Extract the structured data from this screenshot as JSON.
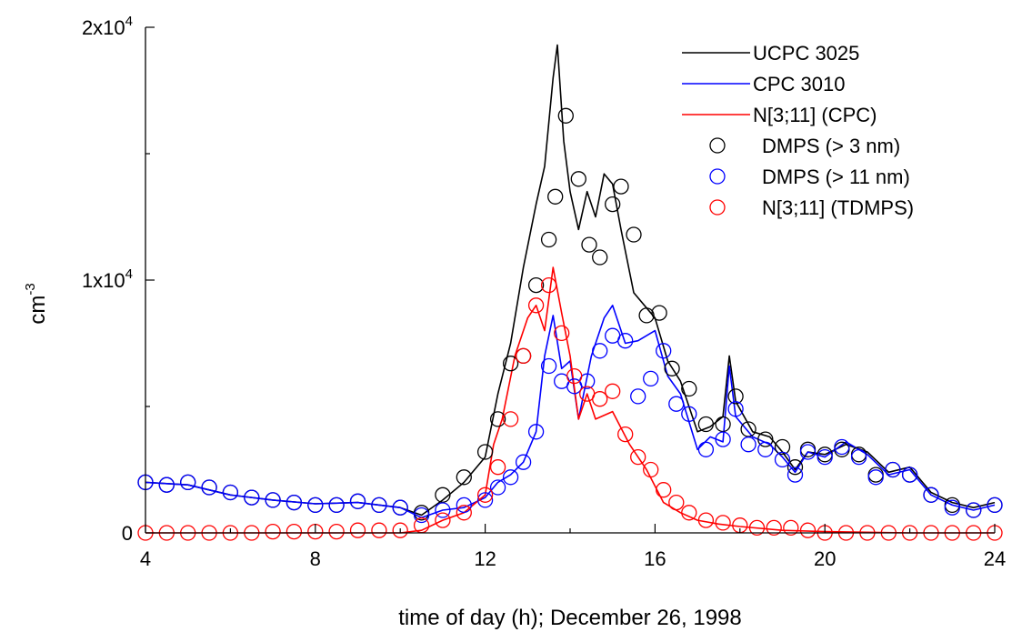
{
  "chart_data": {
    "type": "line",
    "title": "",
    "xlabel": "time of day (h); December 26, 1998",
    "ylabel": {
      "base": "cm",
      "exponent": "-3"
    },
    "xlim": [
      4,
      24
    ],
    "ylim": [
      0,
      20000
    ],
    "x_ticks": [
      4,
      8,
      12,
      16,
      20,
      24
    ],
    "x_tick_labels": [
      "4",
      "8",
      "12",
      "16",
      "20",
      "24"
    ],
    "y_ticks": [
      0,
      10000,
      20000
    ],
    "y_tick_labels": [
      {
        "text": "0",
        "base": "",
        "exponent": ""
      },
      {
        "text": "",
        "base": "1x10",
        "exponent": "4"
      },
      {
        "text": "",
        "base": "2x10",
        "exponent": "4"
      }
    ],
    "grid": false,
    "legend_position": "top-right",
    "series": [
      {
        "name": "UCPC 3025",
        "kind": "line",
        "color": "#000000",
        "x": [
          4,
          5,
          6,
          7,
          8,
          9,
          10,
          10.5,
          11,
          11.5,
          12,
          12.3,
          12.6,
          12.9,
          13.2,
          13.4,
          13.6,
          13.7,
          13.85,
          14,
          14.2,
          14.4,
          14.6,
          14.8,
          15,
          15.2,
          15.5,
          16,
          16.3,
          16.6,
          17,
          17.3,
          17.6,
          17.75,
          17.9,
          18.3,
          18.7,
          19,
          19.3,
          19.6,
          20,
          20.5,
          21,
          21.5,
          22,
          22.5,
          23,
          23.5,
          24
        ],
        "y": [
          2000,
          1900,
          1500,
          1300,
          1150,
          1200,
          1000,
          700,
          1300,
          2000,
          3000,
          5500,
          7500,
          10500,
          13000,
          14500,
          18000,
          19300,
          15500,
          13500,
          12000,
          13500,
          12500,
          14200,
          13800,
          12000,
          9500,
          8500,
          6800,
          6000,
          4000,
          4200,
          4600,
          7000,
          5200,
          4000,
          3800,
          3200,
          2500,
          3200,
          3100,
          3500,
          3200,
          2400,
          2600,
          1600,
          1200,
          1000,
          1200
        ]
      },
      {
        "name": "CPC 3010",
        "kind": "line",
        "color": "#0000ff",
        "x": [
          4,
          5,
          6,
          7,
          8,
          9,
          10,
          10.5,
          11,
          11.5,
          12,
          12.3,
          12.6,
          12.9,
          13.2,
          13.4,
          13.6,
          13.8,
          14,
          14.2,
          14.5,
          14.8,
          15,
          15.3,
          15.6,
          16,
          16.3,
          16.6,
          17,
          17.3,
          17.6,
          17.75,
          17.9,
          18.3,
          18.7,
          19,
          19.3,
          19.6,
          20,
          20.5,
          21,
          21.5,
          22,
          22.5,
          23,
          23.5,
          24
        ],
        "y": [
          2000,
          1900,
          1500,
          1300,
          1150,
          1200,
          1000,
          600,
          900,
          1000,
          1400,
          2000,
          2300,
          2800,
          4000,
          7000,
          8600,
          6500,
          6800,
          4500,
          7000,
          8500,
          9000,
          7500,
          7600,
          8000,
          6200,
          5500,
          3300,
          3800,
          3600,
          6600,
          4600,
          3800,
          3500,
          3000,
          2400,
          3200,
          3000,
          3600,
          3100,
          2300,
          2500,
          1500,
          1100,
          900,
          1100
        ]
      },
      {
        "name": "N[3;11] (CPC)",
        "kind": "line",
        "color": "#ff0000",
        "x": [
          4,
          6,
          8,
          10,
          10.5,
          11,
          11.5,
          12,
          12.2,
          12.4,
          12.7,
          13,
          13.2,
          13.4,
          13.6,
          13.8,
          14,
          14.2,
          14.4,
          14.6,
          15,
          15.4,
          15.8,
          16.2,
          16.6,
          17,
          17.5,
          18,
          19,
          20,
          22,
          24
        ],
        "y": [
          0,
          0,
          0,
          0,
          100,
          500,
          800,
          1500,
          3500,
          4500,
          7000,
          8500,
          9000,
          8000,
          10500,
          8700,
          7000,
          4500,
          5500,
          4500,
          4800,
          3500,
          2500,
          1200,
          800,
          500,
          350,
          250,
          100,
          50,
          0,
          0
        ]
      },
      {
        "name": "DMPS (> 3 nm)",
        "kind": "markers",
        "color": "#000000",
        "x": [
          4,
          4.5,
          5,
          5.5,
          6,
          6.5,
          7,
          7.5,
          8,
          8.5,
          9,
          9.5,
          10,
          10.5,
          11,
          11.5,
          12,
          12.3,
          12.6,
          12.9,
          13.2,
          13.5,
          13.65,
          13.9,
          14.2,
          14.45,
          14.7,
          15,
          15.2,
          15.5,
          15.8,
          16.1,
          16.4,
          16.8,
          17.2,
          17.6,
          17.9,
          18.2,
          18.6,
          19,
          19.3,
          19.6,
          20,
          20.4,
          20.8,
          21.2,
          21.6,
          22,
          22.5,
          23,
          23.5,
          24
        ],
        "y": [
          2000,
          1900,
          2000,
          1800,
          1600,
          1400,
          1300,
          1200,
          1100,
          1100,
          1250,
          1100,
          1000,
          800,
          1500,
          2200,
          3200,
          4500,
          6700,
          7000,
          9800,
          11600,
          13300,
          16500,
          14000,
          11400,
          10900,
          13000,
          13700,
          11800,
          8600,
          8700,
          6500,
          5700,
          4300,
          4300,
          5400,
          4100,
          3700,
          3400,
          2600,
          3300,
          3100,
          3300,
          3100,
          2300,
          2500,
          2300,
          1500,
          1100,
          900,
          1100
        ]
      },
      {
        "name": "DMPS (> 11 nm)",
        "kind": "markers",
        "color": "#0000ff",
        "x": [
          4,
          4.5,
          5,
          5.5,
          6,
          6.5,
          7,
          7.5,
          8,
          8.5,
          9,
          9.5,
          10,
          10.5,
          11,
          11.5,
          12,
          12.3,
          12.6,
          12.9,
          13.2,
          13.5,
          13.8,
          14.1,
          14.4,
          14.7,
          15,
          15.3,
          15.6,
          15.9,
          16.2,
          16.5,
          16.8,
          17.2,
          17.6,
          17.9,
          18.2,
          18.6,
          19,
          19.3,
          19.6,
          20,
          20.4,
          20.8,
          21.2,
          21.6,
          22,
          22.5,
          23,
          23.5,
          24
        ],
        "y": [
          2000,
          1900,
          2000,
          1800,
          1600,
          1400,
          1300,
          1200,
          1100,
          1100,
          1250,
          1100,
          1000,
          700,
          900,
          1100,
          1300,
          1800,
          2200,
          2800,
          4000,
          6600,
          6000,
          5800,
          6000,
          7200,
          7800,
          7600,
          5400,
          6100,
          7200,
          5100,
          4700,
          3300,
          3700,
          4900,
          3500,
          3300,
          2900,
          2300,
          3200,
          3000,
          3400,
          3000,
          2200,
          2500,
          2300,
          1500,
          1000,
          900,
          1100
        ]
      },
      {
        "name": "N[3;11] (TDMPS)",
        "kind": "markers",
        "color": "#ff0000",
        "x": [
          4,
          4.5,
          5,
          5.5,
          6,
          6.5,
          7,
          7.5,
          8,
          8.5,
          9,
          9.5,
          10,
          10.5,
          11,
          11.5,
          12,
          12.3,
          12.6,
          12.9,
          13.2,
          13.5,
          13.8,
          14.1,
          14.4,
          14.7,
          15,
          15.3,
          15.6,
          15.9,
          16.2,
          16.5,
          16.8,
          17.2,
          17.6,
          18,
          18.4,
          18.8,
          19.2,
          19.6,
          20,
          20.5,
          21,
          21.5,
          22,
          22.5,
          23,
          23.5,
          24
        ],
        "y": [
          0,
          0,
          0,
          0,
          0,
          0,
          50,
          50,
          50,
          50,
          100,
          100,
          100,
          300,
          500,
          800,
          1500,
          2600,
          4500,
          7000,
          9000,
          9800,
          7900,
          6200,
          5500,
          5300,
          5600,
          3900,
          3000,
          2500,
          1700,
          1200,
          800,
          500,
          400,
          300,
          200,
          200,
          200,
          100,
          0,
          0,
          0,
          0,
          0,
          0,
          0,
          0,
          0
        ]
      }
    ]
  }
}
